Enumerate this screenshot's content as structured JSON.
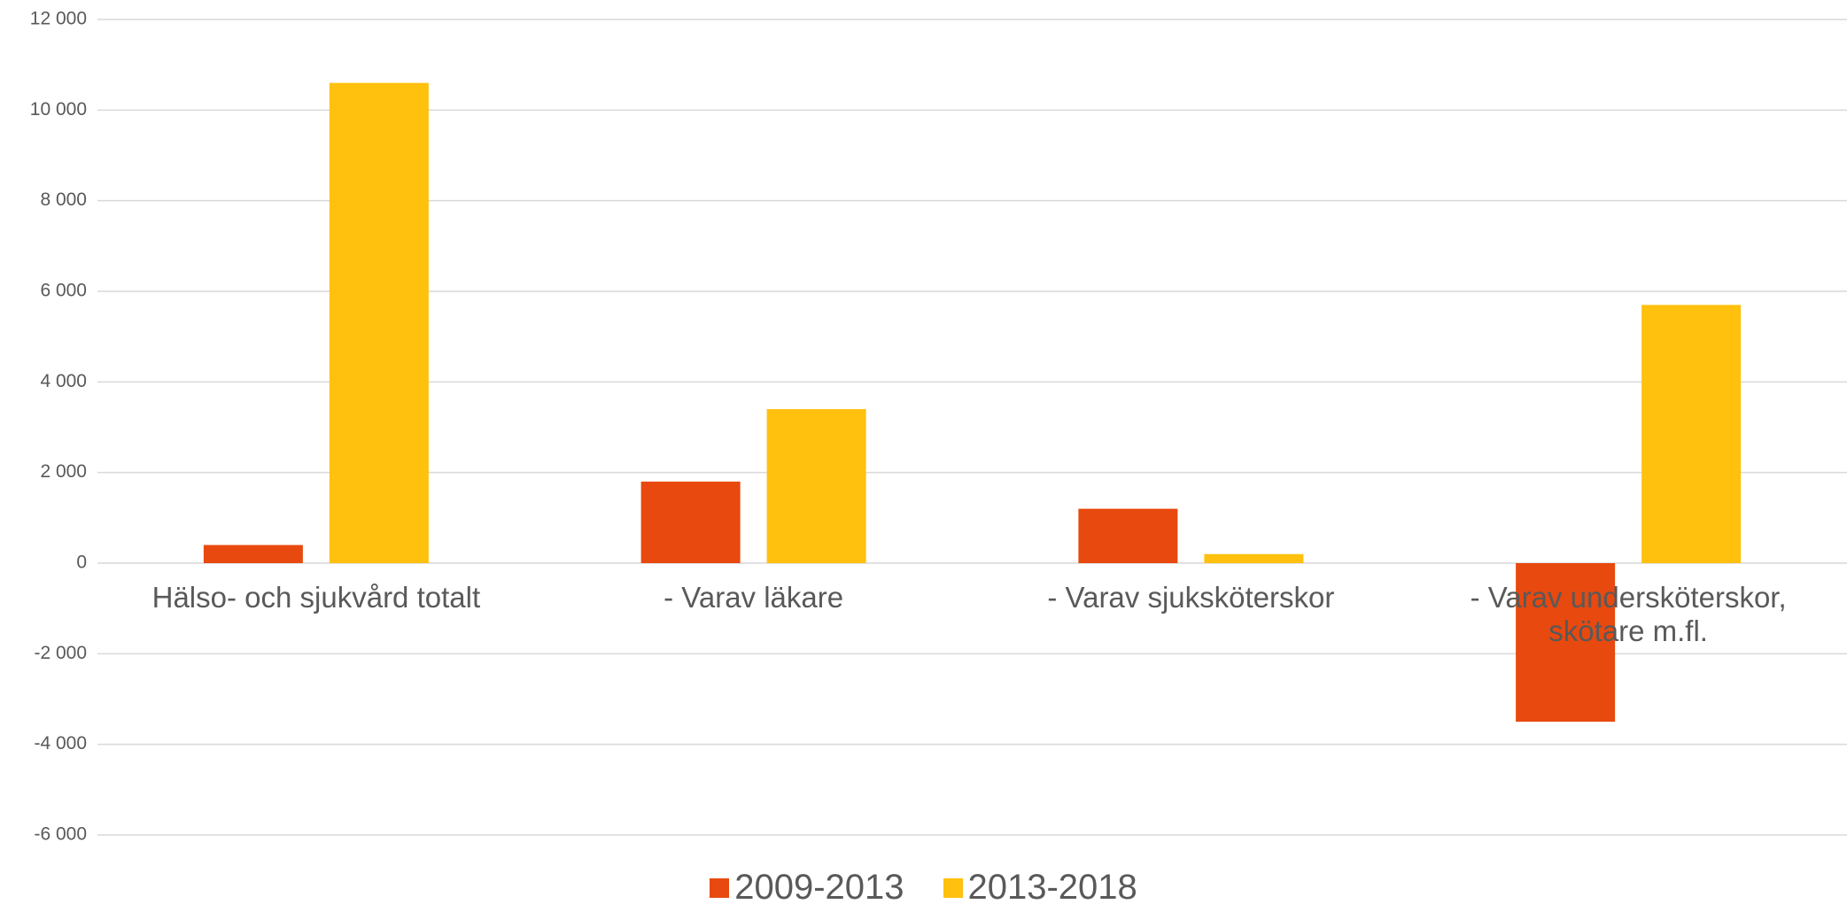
{
  "chart_data": {
    "type": "bar",
    "categories": [
      "Hälso- och sjukvård totalt",
      "- Varav läkare",
      "- Varav sjuksköterskor",
      "- Varav undersköterskor, skötare m.fl."
    ],
    "series": [
      {
        "name": "2009-2013",
        "color": "#e8490f",
        "values": [
          400,
          1800,
          1200,
          -3500
        ]
      },
      {
        "name": "2013-2018",
        "color": "#ffc00e",
        "values": [
          10600,
          3400,
          200,
          5700
        ]
      }
    ],
    "ylim": [
      -6000,
      12000
    ],
    "yticks": [
      {
        "value": -6000,
        "label": "-6 000"
      },
      {
        "value": -4000,
        "label": "-4 000"
      },
      {
        "value": -2000,
        "label": "-2 000"
      },
      0,
      {
        "value": 2000,
        "label": "2 000"
      },
      {
        "value": 4000,
        "label": "4 000"
      },
      {
        "value": 6000,
        "label": "6 000"
      },
      {
        "value": 8000,
        "label": "8 000"
      },
      {
        "value": 10000,
        "label": "10 000"
      },
      {
        "value": 12000,
        "label": "12 000"
      }
    ],
    "grid": true,
    "legend": "bottom"
  }
}
